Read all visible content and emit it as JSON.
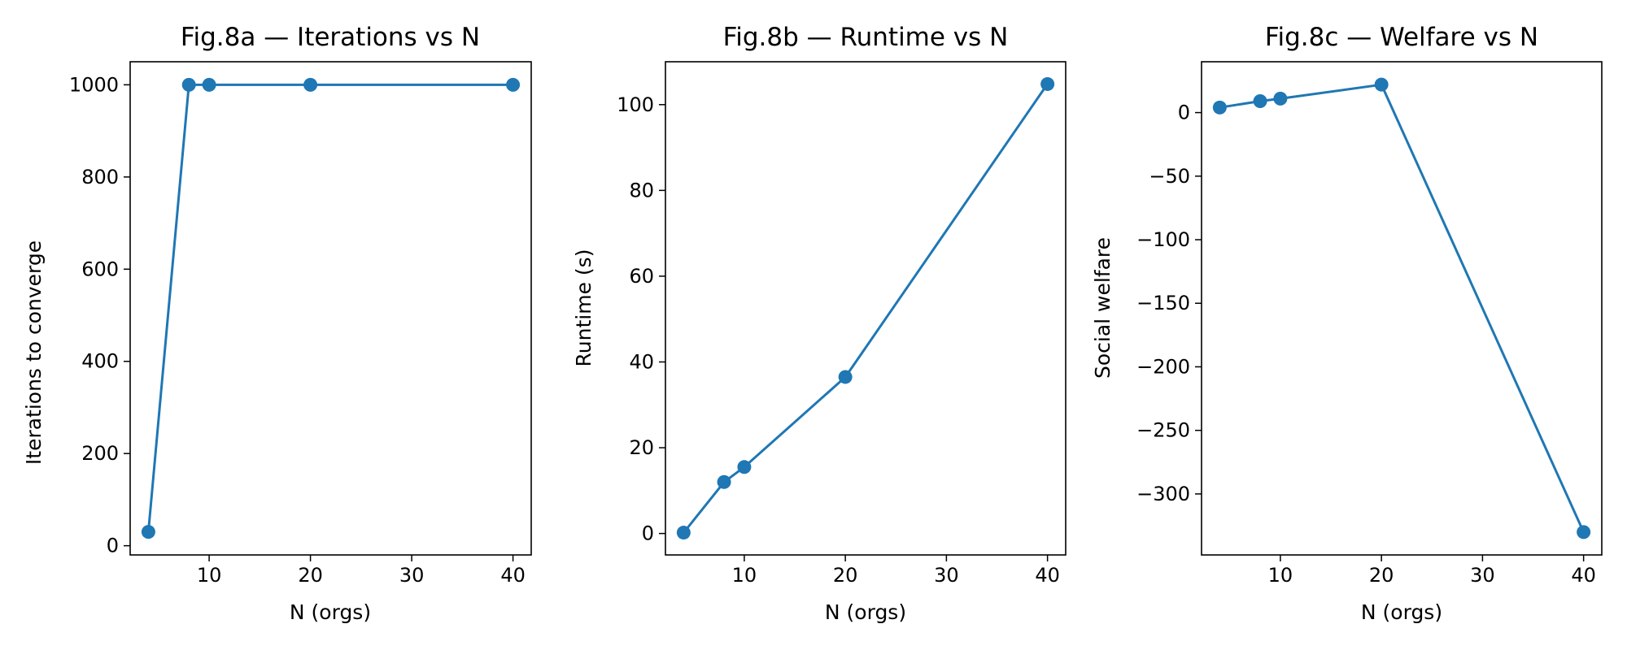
{
  "chart_data": [
    {
      "type": "line",
      "title": "Fig.8a — Iterations vs N",
      "xlabel": "N (orgs)",
      "ylabel": "Iterations to converge",
      "x": [
        4,
        8,
        10,
        20,
        40
      ],
      "series": [
        {
          "values": [
            30,
            1000,
            1000,
            1000,
            1000
          ]
        }
      ],
      "xlim": [
        2.2,
        41.8
      ],
      "ylim": [
        -20,
        1050
      ],
      "xticks": [
        10,
        20,
        30,
        40
      ],
      "yticks": [
        0,
        200,
        400,
        600,
        800,
        1000
      ],
      "grid": false,
      "markers": true
    },
    {
      "type": "line",
      "title": "Fig.8b — Runtime vs N",
      "xlabel": "N (orgs)",
      "ylabel": "Runtime (s)",
      "x": [
        4,
        8,
        10,
        20,
        40
      ],
      "series": [
        {
          "values": [
            0.2,
            12,
            15.5,
            36.5,
            104.8
          ]
        }
      ],
      "xlim": [
        2.2,
        41.8
      ],
      "ylim": [
        -5,
        110
      ],
      "xticks": [
        10,
        20,
        30,
        40
      ],
      "yticks": [
        0,
        20,
        40,
        60,
        80,
        100
      ],
      "grid": false,
      "markers": true
    },
    {
      "type": "line",
      "title": "Fig.8c — Welfare vs N",
      "xlabel": "N (orgs)",
      "ylabel": "Social welfare",
      "x": [
        4,
        8,
        10,
        20,
        40
      ],
      "series": [
        {
          "values": [
            4,
            9,
            11,
            22,
            -330
          ]
        }
      ],
      "xlim": [
        2.2,
        41.8
      ],
      "ylim": [
        -348,
        40
      ],
      "xticks": [
        10,
        20,
        30,
        40
      ],
      "yticks": [
        0,
        -50,
        -100,
        -150,
        -200,
        -250,
        -300
      ],
      "grid": false,
      "markers": true
    }
  ],
  "colors": {
    "series": "#1f77b4",
    "axes": "#000000"
  }
}
